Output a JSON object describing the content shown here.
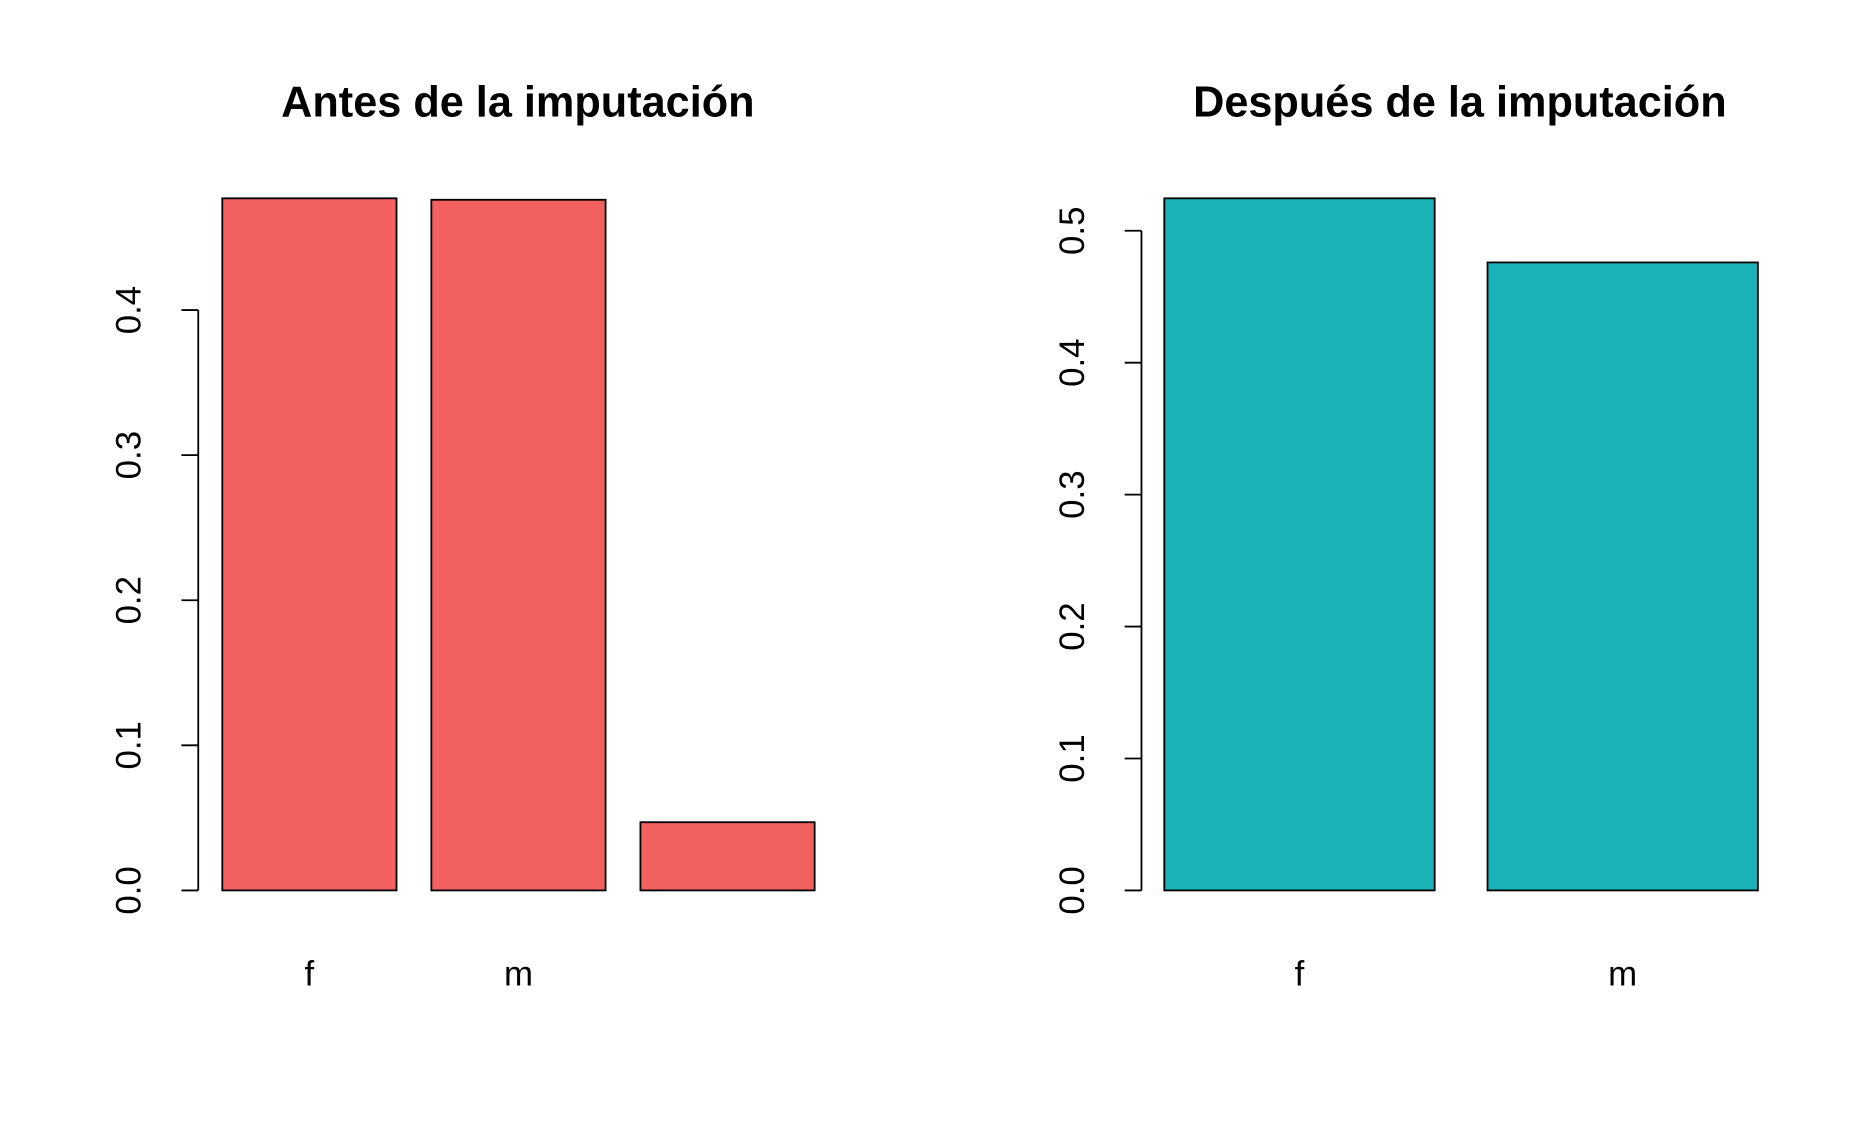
{
  "chart_data": [
    {
      "type": "bar",
      "title": "Antes de la imputación",
      "categories": [
        "f",
        "m",
        null
      ],
      "values": [
        0.477,
        0.476,
        0.047
      ],
      "color": "#f26160",
      "ylim": [
        0,
        0.477
      ],
      "yticks": [
        {
          "value": 0,
          "label": "0.0"
        },
        0.1,
        0.2,
        0.3,
        0.4
      ]
    },
    {
      "type": "bar",
      "title": "Después de la imputación",
      "categories": [
        "f",
        "m"
      ],
      "values": [
        0.5246,
        0.476
      ],
      "color": "#1ab3b8",
      "ylim": [
        0,
        0.5246
      ],
      "yticks": [
        {
          "value": 0,
          "label": "0.0"
        },
        0.1,
        0.2,
        0.3,
        0.4,
        0.5
      ]
    }
  ]
}
